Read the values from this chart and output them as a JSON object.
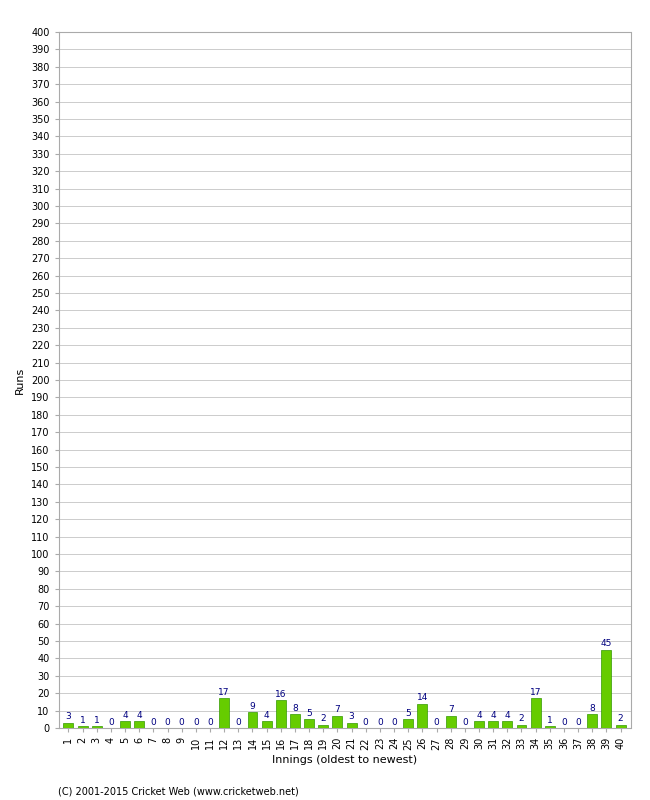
{
  "values": [
    3,
    1,
    1,
    0,
    4,
    4,
    0,
    0,
    0,
    0,
    0,
    17,
    0,
    9,
    4,
    16,
    8,
    5,
    2,
    7,
    3,
    0,
    0,
    0,
    5,
    14,
    0,
    7,
    0,
    4,
    4,
    4,
    2,
    17,
    1,
    0,
    0,
    8,
    45,
    2
  ],
  "bar_color": "#66cc00",
  "bar_edge_color": "#339900",
  "label_color": "#000080",
  "xlabel": "Innings (oldest to newest)",
  "ylabel": "Runs",
  "ylim": [
    0,
    400
  ],
  "footer": "(C) 2001-2015 Cricket Web (www.cricketweb.net)",
  "background_color": "#ffffff",
  "grid_color": "#cccccc",
  "label_fontsize": 6.5,
  "axis_label_fontsize": 8,
  "tick_fontsize": 7,
  "footer_fontsize": 7
}
